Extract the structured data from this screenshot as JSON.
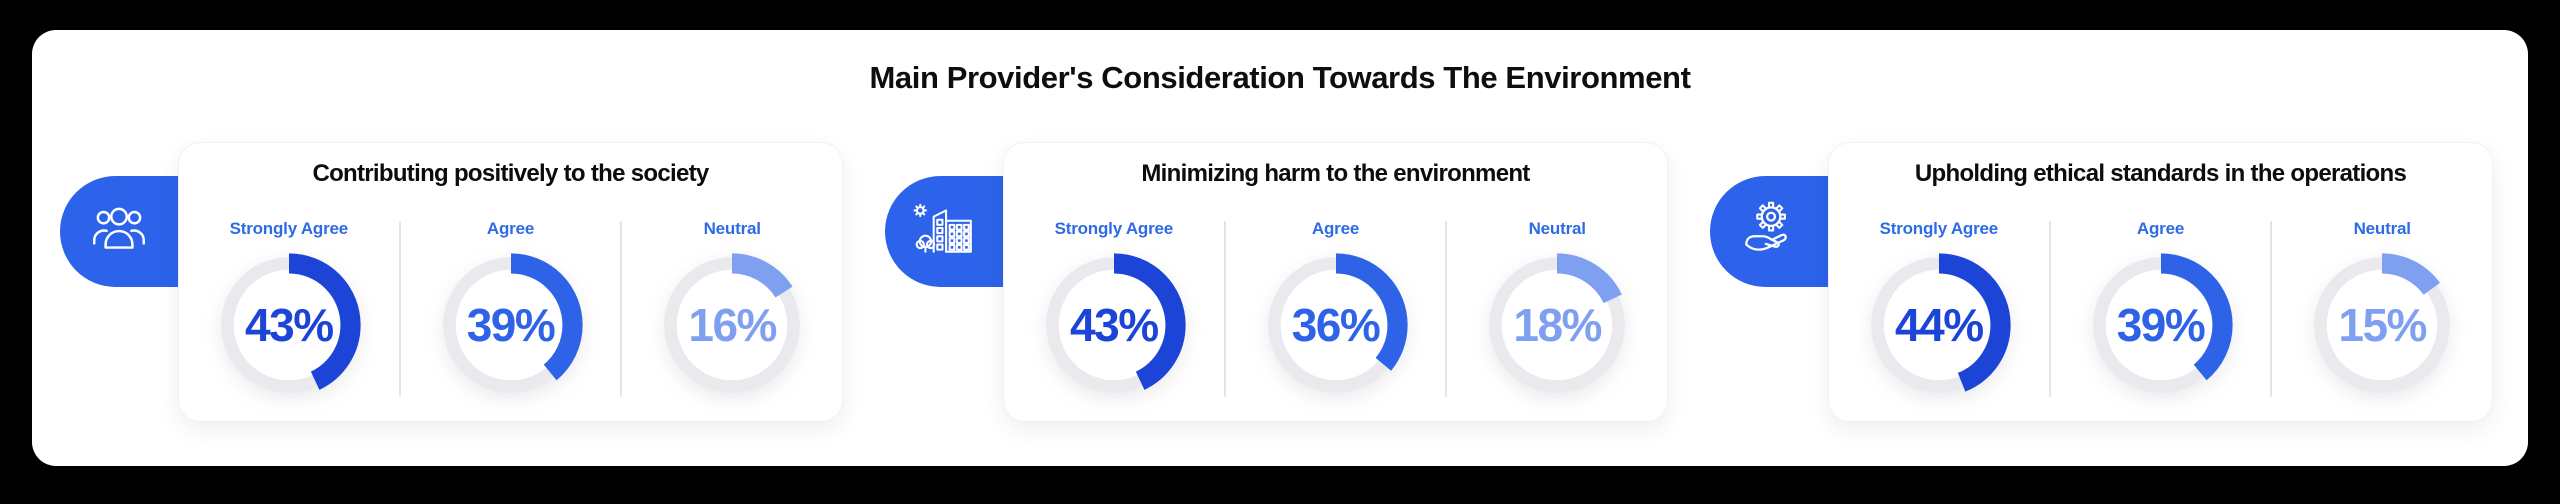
{
  "header": {
    "title": "Main Provider's Consideration Towards The Environment"
  },
  "percent_unit": "%",
  "colors": {
    "background_frame": "#000000",
    "panel": "#ffffff",
    "pill": "#2c63ea",
    "label_blue": "#2e6be6",
    "ring_gray": "#e9e9ee",
    "series": [
      "#1c44d6",
      "#2e63e8",
      "#7f9ff0"
    ]
  },
  "chart_data": [
    {
      "type": "donut-group",
      "title": "Contributing positively to the society",
      "icon": "people-group-icon",
      "categories": [
        "Strongly Agree",
        "Agree",
        "Neutral"
      ],
      "values": [
        43,
        39,
        16
      ],
      "unit": "%",
      "legend_position": "above-each-donut",
      "value_range": [
        0,
        100
      ]
    },
    {
      "type": "donut-group",
      "title": "Minimizing harm to the environment",
      "icon": "eco-building-icon",
      "categories": [
        "Strongly Agree",
        "Agree",
        "Neutral"
      ],
      "values": [
        43,
        36,
        18
      ],
      "unit": "%",
      "legend_position": "above-each-donut",
      "value_range": [
        0,
        100
      ]
    },
    {
      "type": "donut-group",
      "title": "Upholding ethical standards in the operations",
      "icon": "hand-gear-icon",
      "categories": [
        "Strongly Agree",
        "Agree",
        "Neutral"
      ],
      "values": [
        44,
        39,
        15
      ],
      "unit": "%",
      "legend_position": "above-each-donut",
      "value_range": [
        0,
        100
      ]
    }
  ]
}
